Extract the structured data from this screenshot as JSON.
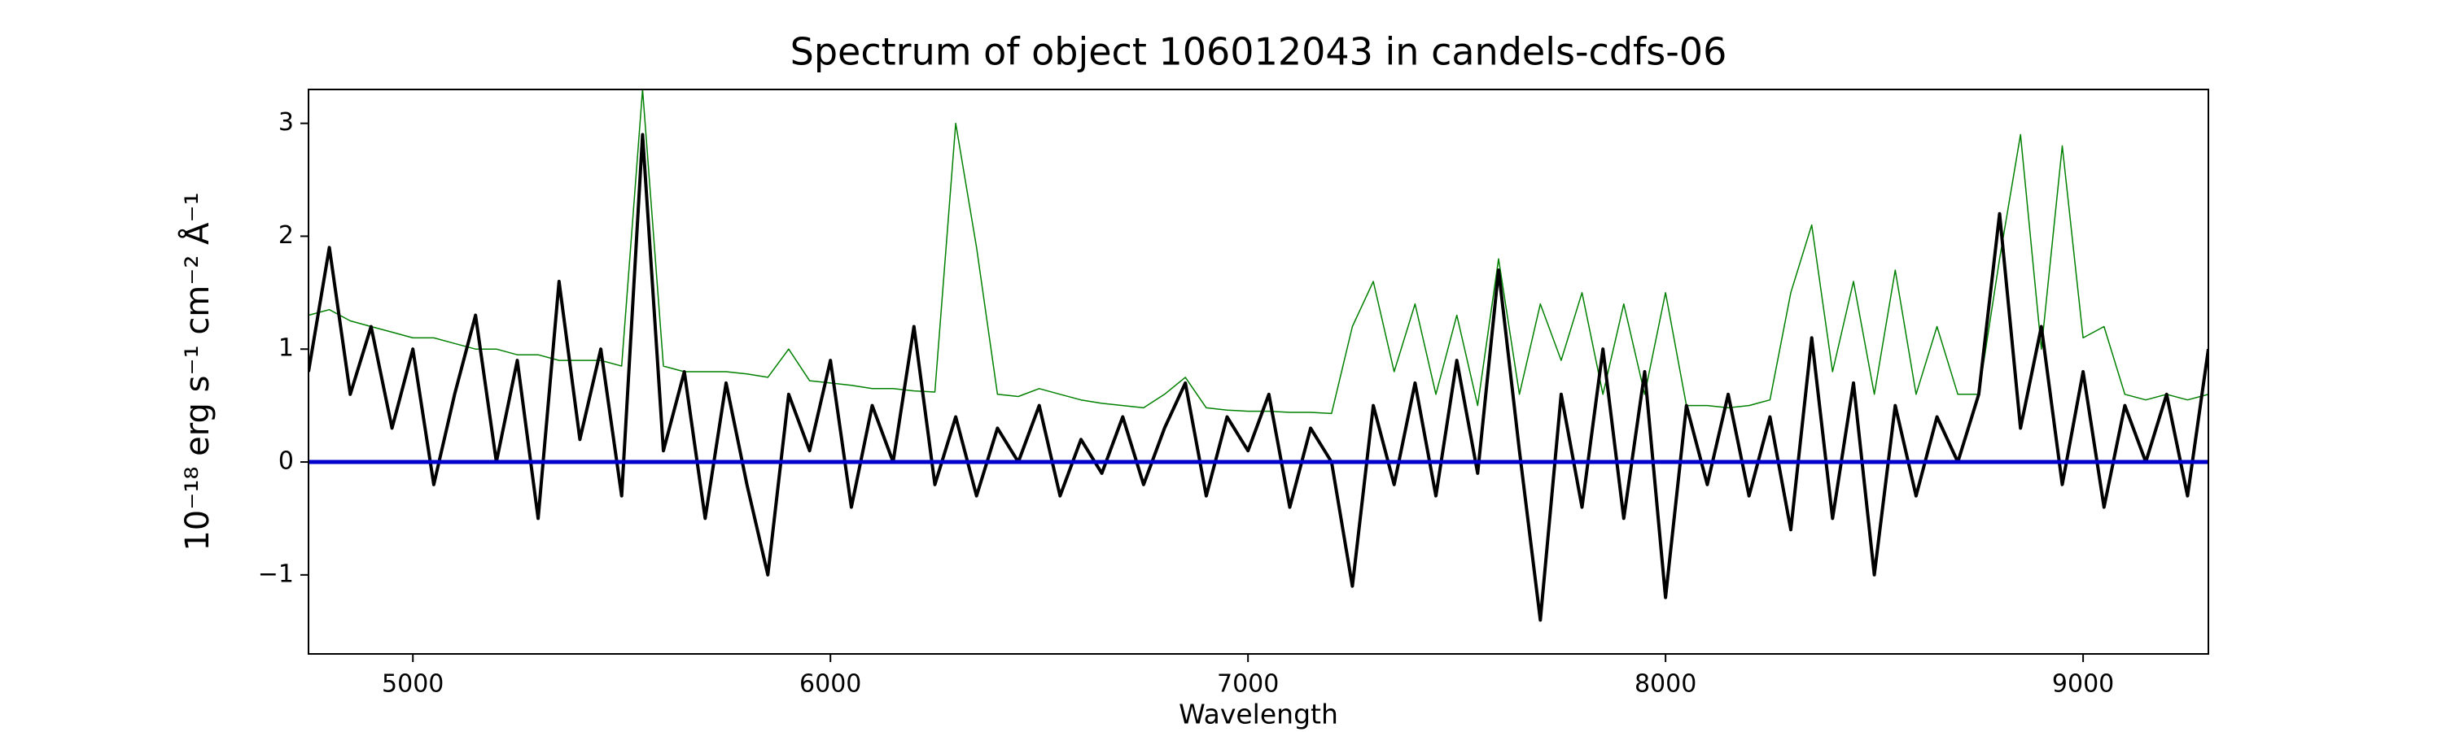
{
  "chart_data": {
    "type": "line",
    "title": "Spectrum of object 106012043 in candels-cdfs-06",
    "xlabel": "Wavelength",
    "ylabel": "10⁻¹⁸ erg s⁻¹ cm⁻² Å⁻¹",
    "x": [
      4750,
      4800,
      4850,
      4900,
      4950,
      5000,
      5050,
      5100,
      5150,
      5200,
      5250,
      5300,
      5350,
      5400,
      5450,
      5500,
      5550,
      5600,
      5650,
      5700,
      5750,
      5800,
      5850,
      5900,
      5950,
      6000,
      6050,
      6100,
      6150,
      6200,
      6250,
      6300,
      6350,
      6400,
      6450,
      6500,
      6550,
      6600,
      6650,
      6700,
      6750,
      6800,
      6850,
      6900,
      6950,
      7000,
      7050,
      7100,
      7150,
      7200,
      7250,
      7300,
      7350,
      7400,
      7450,
      7500,
      7550,
      7600,
      7650,
      7700,
      7750,
      7800,
      7850,
      7900,
      7950,
      8000,
      8050,
      8100,
      8150,
      8200,
      8250,
      8300,
      8350,
      8400,
      8450,
      8500,
      8550,
      8600,
      8650,
      8700,
      8750,
      8800,
      8850,
      8900,
      8950,
      9000,
      9050,
      9100,
      9150,
      9200,
      9250,
      9300
    ],
    "series": [
      {
        "color": "#008000",
        "width": 1.5,
        "values": [
          1.3,
          1.35,
          1.25,
          1.2,
          1.15,
          1.1,
          1.1,
          1.05,
          1.0,
          1.0,
          0.95,
          0.95,
          0.9,
          0.9,
          0.9,
          0.85,
          3.3,
          0.85,
          0.8,
          0.8,
          0.8,
          0.78,
          0.75,
          1.0,
          0.72,
          0.7,
          0.68,
          0.65,
          0.65,
          0.63,
          0.62,
          3.0,
          1.9,
          0.6,
          0.58,
          0.65,
          0.6,
          0.55,
          0.52,
          0.5,
          0.48,
          0.6,
          0.75,
          0.48,
          0.46,
          0.45,
          0.45,
          0.44,
          0.44,
          0.43,
          1.2,
          1.6,
          0.8,
          1.4,
          0.6,
          1.3,
          0.5,
          1.8,
          0.6,
          1.4,
          0.9,
          1.5,
          0.6,
          1.4,
          0.6,
          1.5,
          0.5,
          0.5,
          0.48,
          0.5,
          0.55,
          1.5,
          2.1,
          0.8,
          1.6,
          0.6,
          1.7,
          0.6,
          1.2,
          0.6,
          0.6,
          1.8,
          2.9,
          1.0,
          2.8,
          1.1,
          1.2,
          0.6,
          0.55,
          0.6,
          0.55,
          0.6
        ]
      },
      {
        "color": "#000000",
        "width": 4,
        "values": [
          0.8,
          1.9,
          0.6,
          1.2,
          0.3,
          1.0,
          -0.2,
          0.6,
          1.3,
          0.0,
          0.9,
          -0.5,
          1.6,
          0.2,
          1.0,
          -0.3,
          2.9,
          0.1,
          0.8,
          -0.5,
          0.7,
          -0.2,
          -1.0,
          0.6,
          0.1,
          0.9,
          -0.4,
          0.5,
          0.0,
          1.2,
          -0.2,
          0.4,
          -0.3,
          0.3,
          0.0,
          0.5,
          -0.3,
          0.2,
          -0.1,
          0.4,
          -0.2,
          0.3,
          0.7,
          -0.3,
          0.4,
          0.1,
          0.6,
          -0.4,
          0.3,
          0.0,
          -1.1,
          0.5,
          -0.2,
          0.7,
          -0.3,
          0.9,
          -0.1,
          1.7,
          0.1,
          -1.4,
          0.6,
          -0.4,
          1.0,
          -0.5,
          0.8,
          -1.2,
          0.5,
          -0.2,
          0.6,
          -0.3,
          0.4,
          -0.6,
          1.1,
          -0.5,
          0.7,
          -1.0,
          0.5,
          -0.3,
          0.4,
          0.0,
          0.6,
          2.2,
          0.3,
          1.2,
          -0.2,
          0.8,
          -0.4,
          0.5,
          0.0,
          0.6,
          -0.3,
          1.0
        ]
      },
      {
        "color": "#0000cc",
        "width": 5,
        "x": [
          4750,
          9300
        ],
        "values": [
          0,
          0
        ]
      }
    ],
    "xlim": [
      4750,
      9300
    ],
    "xticks": [
      5000,
      6000,
      7000,
      8000,
      9000
    ],
    "ylim": [
      -1.7,
      3.3
    ],
    "yticks": [
      {
        "value": -1,
        "label": "−1"
      },
      0,
      1,
      2,
      3
    ]
  }
}
